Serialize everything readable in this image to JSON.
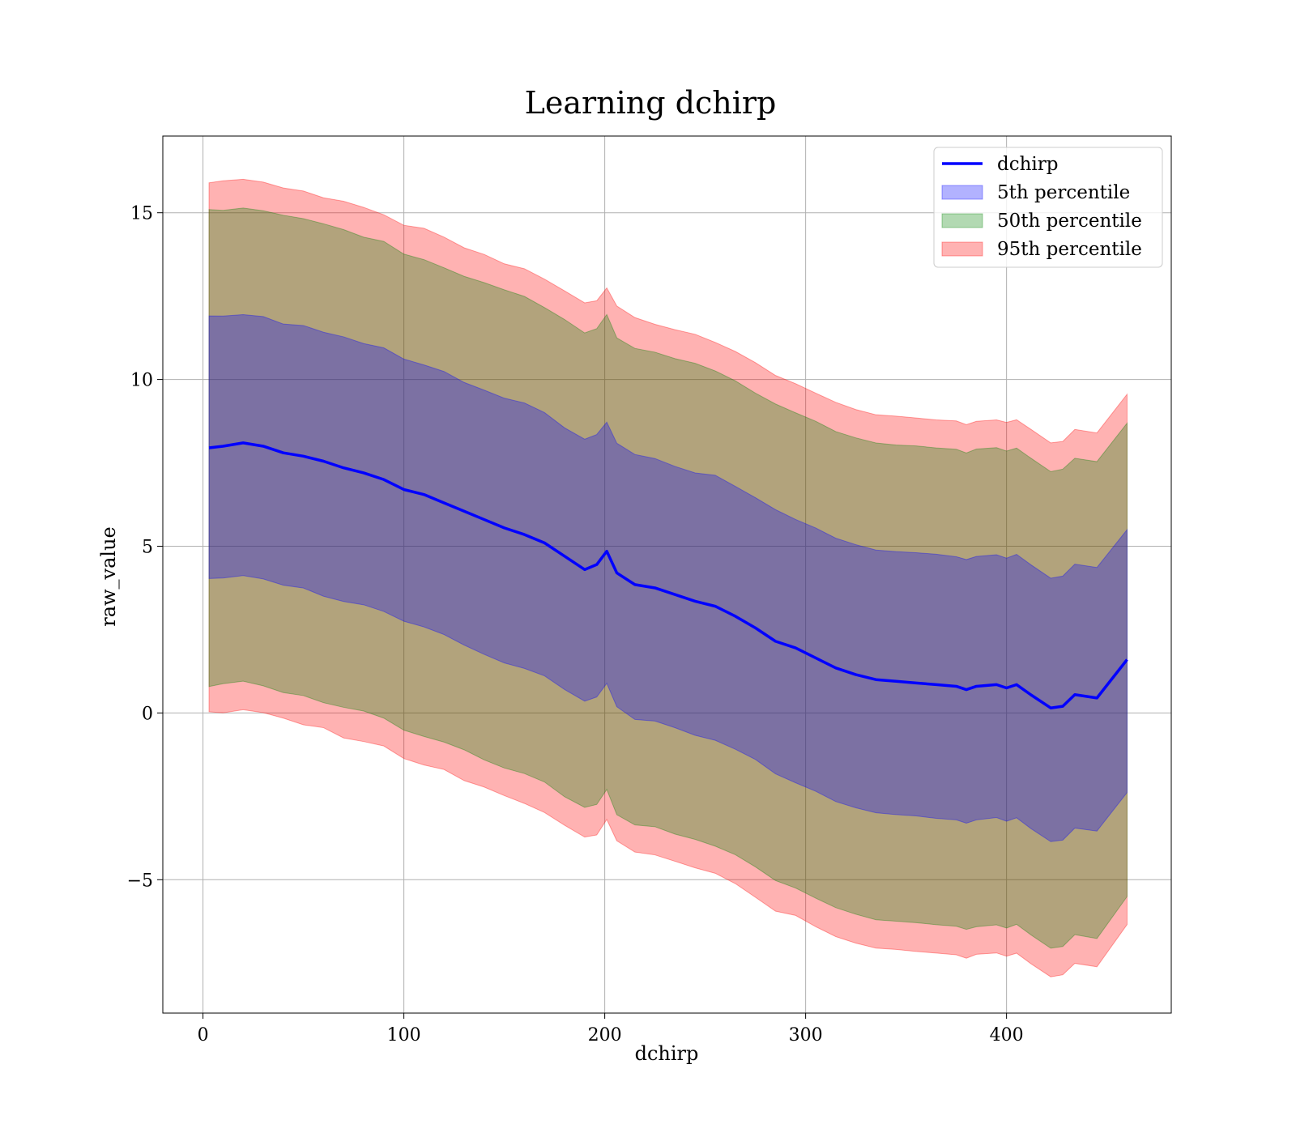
{
  "chart_data": {
    "type": "area",
    "title": "Learning dchirp",
    "xlabel": "dchirp",
    "ylabel": "raw_value",
    "xlim": [
      -20,
      482
    ],
    "ylim": [
      -9.0,
      17.3
    ],
    "xticks": [
      0,
      100,
      200,
      300,
      400
    ],
    "xtick_labels": [
      "0",
      "100",
      "200",
      "300",
      "400"
    ],
    "yticks": [
      -5,
      0,
      5,
      10,
      15
    ],
    "ytick_labels": [
      "−5",
      "0",
      "5",
      "10",
      "15"
    ],
    "grid": true,
    "legend_position": "top-right",
    "x": [
      3,
      10,
      20,
      30,
      40,
      50,
      60,
      70,
      80,
      90,
      100,
      110,
      120,
      130,
      140,
      150,
      160,
      170,
      180,
      190,
      196,
      201,
      206,
      215,
      225,
      235,
      245,
      255,
      265,
      275,
      285,
      295,
      305,
      315,
      325,
      335,
      345,
      355,
      365,
      375,
      380,
      385,
      395,
      400,
      405,
      412,
      422,
      428,
      434,
      445,
      460
    ],
    "series": [
      {
        "name": "dchirp",
        "kind": "line",
        "color": "#0000ff",
        "values": [
          7.95,
          8.0,
          8.1,
          8.0,
          7.8,
          7.7,
          7.55,
          7.35,
          7.2,
          7.0,
          6.7,
          6.55,
          6.3,
          6.05,
          5.8,
          5.55,
          5.35,
          5.1,
          4.7,
          4.3,
          4.45,
          4.85,
          4.2,
          3.85,
          3.75,
          3.55,
          3.35,
          3.2,
          2.9,
          2.55,
          2.15,
          1.95,
          1.65,
          1.35,
          1.15,
          1.0,
          0.95,
          0.9,
          0.85,
          0.8,
          0.7,
          0.8,
          0.85,
          0.75,
          0.85,
          0.55,
          0.15,
          0.2,
          0.55,
          0.45,
          1.6
        ]
      },
      {
        "name": "5th percentile",
        "kind": "band",
        "color": "#0000ff",
        "opacity": 0.3,
        "lower": [
          4.05,
          4.1,
          4.15,
          4.05,
          3.85,
          3.7,
          3.55,
          3.35,
          3.2,
          3.05,
          2.7,
          2.55,
          2.3,
          2.05,
          1.8,
          1.55,
          1.35,
          1.1,
          0.7,
          0.35,
          0.45,
          0.85,
          0.2,
          -0.15,
          -0.25,
          -0.45,
          -0.65,
          -0.8,
          -1.1,
          -1.45,
          -1.85,
          -2.05,
          -2.35,
          -2.65,
          -2.85,
          -3.0,
          -3.05,
          -3.1,
          -3.15,
          -3.2,
          -3.3,
          -3.2,
          -3.15,
          -3.25,
          -3.15,
          -3.45,
          -3.85,
          -3.8,
          -3.45,
          -3.55,
          -2.4
        ],
        "upper": [
          11.85,
          11.9,
          12.0,
          11.9,
          11.7,
          11.6,
          11.45,
          11.25,
          11.1,
          10.9,
          10.6,
          10.45,
          10.2,
          9.95,
          9.7,
          9.45,
          9.25,
          9.0,
          8.6,
          8.25,
          8.35,
          8.75,
          8.1,
          7.75,
          7.65,
          7.45,
          7.25,
          7.1,
          6.8,
          6.45,
          6.05,
          5.85,
          5.55,
          5.25,
          5.05,
          4.9,
          4.85,
          4.8,
          4.75,
          4.7,
          4.6,
          4.7,
          4.75,
          4.65,
          4.75,
          4.45,
          4.05,
          4.1,
          4.45,
          4.35,
          5.5
        ]
      },
      {
        "name": "50th percentile",
        "kind": "band",
        "color": "#008000",
        "opacity": 0.3,
        "lower": [
          0.85,
          0.9,
          0.95,
          0.85,
          0.65,
          0.5,
          0.35,
          0.15,
          0.0,
          -0.15,
          -0.5,
          -0.65,
          -0.9,
          -1.15,
          -1.4,
          -1.65,
          -1.85,
          -2.1,
          -2.5,
          -2.85,
          -2.75,
          -2.35,
          -3.0,
          -3.35,
          -3.45,
          -3.65,
          -3.85,
          -4.0,
          -4.3,
          -4.65,
          -5.05,
          -5.25,
          -5.55,
          -5.85,
          -6.05,
          -6.2,
          -6.25,
          -6.3,
          -6.35,
          -6.4,
          -6.5,
          -6.4,
          -6.35,
          -6.45,
          -6.35,
          -6.65,
          -7.05,
          -7.0,
          -6.65,
          -6.75,
          -5.5
        ],
        "upper": [
          15.05,
          15.1,
          15.2,
          15.1,
          14.9,
          14.8,
          14.65,
          14.45,
          14.3,
          14.1,
          13.8,
          13.65,
          13.4,
          13.15,
          12.9,
          12.65,
          12.45,
          12.2,
          11.8,
          11.45,
          11.55,
          11.95,
          11.3,
          10.95,
          10.85,
          10.65,
          10.45,
          10.3,
          10.0,
          9.65,
          9.25,
          9.05,
          8.75,
          8.45,
          8.25,
          8.1,
          8.05,
          8.0,
          7.95,
          7.9,
          7.8,
          7.9,
          7.95,
          7.85,
          7.95,
          7.65,
          7.25,
          7.3,
          7.65,
          7.55,
          8.7
        ]
      },
      {
        "name": "95th percentile",
        "kind": "band",
        "color": "#ff0000",
        "opacity": 0.3,
        "lower": [
          0.0,
          0.05,
          0.1,
          0.0,
          -0.2,
          -0.35,
          -0.5,
          -0.7,
          -0.85,
          -1.0,
          -1.35,
          -1.5,
          -1.75,
          -2.0,
          -2.25,
          -2.5,
          -2.7,
          -2.95,
          -3.35,
          -3.7,
          -3.6,
          -3.2,
          -3.85,
          -4.2,
          -4.3,
          -4.5,
          -4.7,
          -4.85,
          -5.15,
          -5.5,
          -5.9,
          -6.1,
          -6.4,
          -6.7,
          -6.9,
          -7.05,
          -7.1,
          -7.15,
          -7.2,
          -7.25,
          -7.35,
          -7.25,
          -7.2,
          -7.3,
          -7.2,
          -7.5,
          -7.9,
          -7.85,
          -7.5,
          -7.6,
          -6.35
        ],
        "upper": [
          15.9,
          15.95,
          16.05,
          15.95,
          15.75,
          15.65,
          15.5,
          15.3,
          15.15,
          14.95,
          14.65,
          14.5,
          14.25,
          14.0,
          13.75,
          13.5,
          13.3,
          13.05,
          12.65,
          12.3,
          12.4,
          12.8,
          12.15,
          11.8,
          11.7,
          11.5,
          11.3,
          11.15,
          10.85,
          10.5,
          10.1,
          9.9,
          9.6,
          9.3,
          9.1,
          8.95,
          8.9,
          8.85,
          8.8,
          8.75,
          8.65,
          8.75,
          8.8,
          8.7,
          8.8,
          8.5,
          8.1,
          8.15,
          8.5,
          8.4,
          9.55
        ]
      }
    ],
    "legend": [
      {
        "label": "dchirp",
        "kind": "line",
        "color": "#0000ff"
      },
      {
        "label": "5th percentile",
        "kind": "patch",
        "color": "#0000ff"
      },
      {
        "label": "50th percentile",
        "kind": "patch",
        "color": "#008000"
      },
      {
        "label": "95th percentile",
        "kind": "patch",
        "color": "#ff0000"
      }
    ]
  }
}
